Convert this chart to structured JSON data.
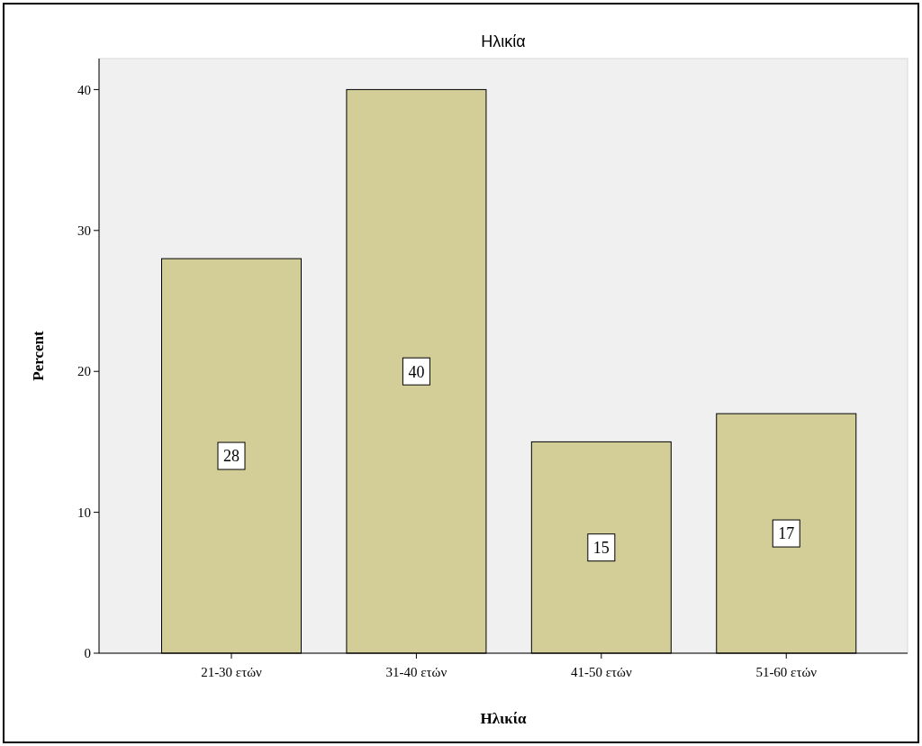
{
  "chart_data": {
    "type": "bar",
    "title": "Ηλικία",
    "xlabel": "Ηλικία",
    "ylabel": "Percent",
    "categories": [
      "21-30 ετών",
      "31-40 ετών",
      "41-50 ετών",
      "51-60 ετών"
    ],
    "values": [
      28,
      40,
      15,
      17
    ],
    "color": "#d3ce97",
    "ylim": [
      0,
      42.2
    ],
    "yticks": [
      0,
      10,
      20,
      30,
      40
    ],
    "grid": false,
    "data_labels": true
  }
}
